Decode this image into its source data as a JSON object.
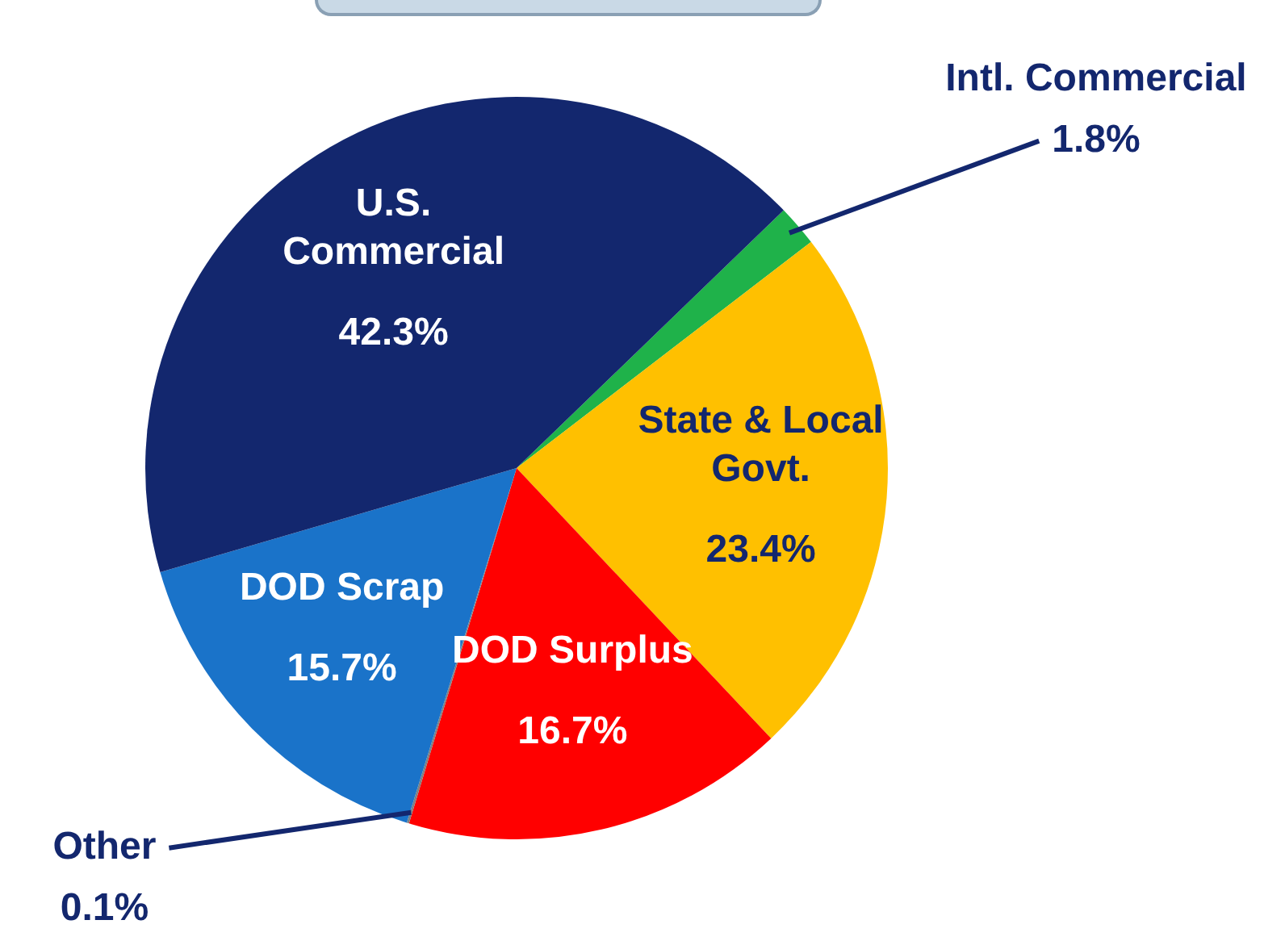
{
  "chart_data": {
    "type": "pie",
    "categories": [
      "Intl. Commercial",
      "State & Local Govt.",
      "DOD Surplus",
      "Other",
      "DOD Scrap",
      "U.S. Commercial"
    ],
    "values": [
      1.8,
      23.4,
      16.7,
      0.1,
      15.7,
      42.3
    ],
    "colors": [
      "#1fb24a",
      "#ffc000",
      "#ff0000",
      "#808080",
      "#1a73c9",
      "#13276e"
    ],
    "value_labels": [
      "1.8%",
      "23.4%",
      "16.7%",
      "0.1%",
      "15.7%",
      "42.3%"
    ],
    "legend": false
  }
}
